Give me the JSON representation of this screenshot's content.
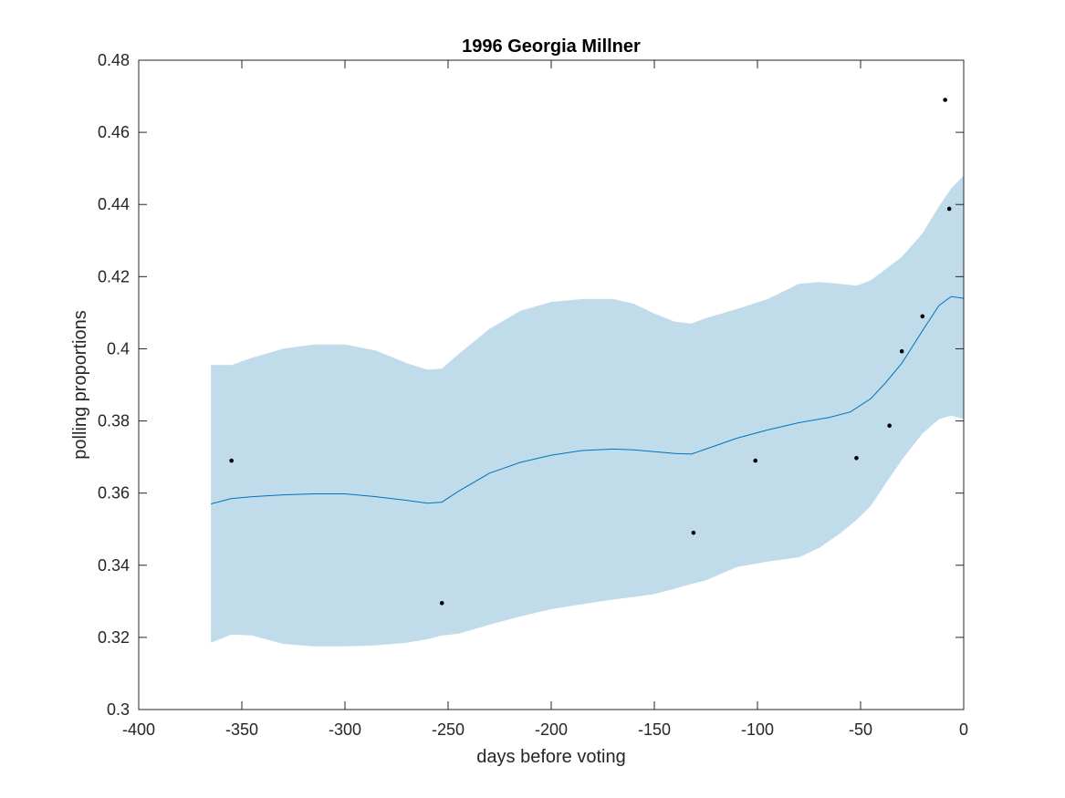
{
  "chart_data": {
    "type": "line",
    "title": "1996 Georgia Millner",
    "xlabel": "days before voting",
    "ylabel": "polling proportions",
    "xlim": [
      -400,
      0
    ],
    "ylim": [
      0.3,
      0.48
    ],
    "xticks": [
      -400,
      -350,
      -300,
      -250,
      -200,
      -150,
      -100,
      -50,
      0
    ],
    "yticks": [
      0.3,
      0.32,
      0.34,
      0.36,
      0.38,
      0.4,
      0.42,
      0.44,
      0.46,
      0.48
    ],
    "xtick_labels": [
      "-400",
      "-350",
      "-300",
      "-250",
      "-200",
      "-150",
      "-100",
      "-50",
      "0"
    ],
    "ytick_labels": [
      "0.3",
      "0.32",
      "0.34",
      "0.36",
      "0.38",
      "0.4",
      "0.42",
      "0.44",
      "0.46",
      "0.48"
    ],
    "grid": false,
    "colors": {
      "band": "#c0dceb",
      "line": "#0072bd",
      "points": "#000000",
      "axes": "#262626"
    },
    "series": [
      {
        "kind": "fit-line",
        "x": [
          -365,
          -355,
          -345,
          -330,
          -315,
          -300,
          -285,
          -270,
          -260,
          -253,
          -245,
          -230,
          -215,
          -200,
          -185,
          -170,
          -160,
          -150,
          -140,
          -132,
          -125,
          -110,
          -95,
          -80,
          -65,
          -55,
          -45,
          -38,
          -30,
          -20,
          -12,
          -6,
          0
        ],
        "y": [
          0.357,
          0.3585,
          0.359,
          0.3595,
          0.3598,
          0.3598,
          0.359,
          0.358,
          0.3572,
          0.3575,
          0.3605,
          0.3655,
          0.3685,
          0.3705,
          0.3718,
          0.3722,
          0.372,
          0.3715,
          0.371,
          0.3708,
          0.3722,
          0.3752,
          0.3775,
          0.3795,
          0.381,
          0.3825,
          0.3862,
          0.3905,
          0.396,
          0.405,
          0.412,
          0.4145,
          0.414
        ]
      },
      {
        "kind": "band-upper",
        "x": [
          -365,
          -355,
          -345,
          -330,
          -315,
          -300,
          -285,
          -270,
          -260,
          -253,
          -245,
          -230,
          -215,
          -200,
          -185,
          -170,
          -160,
          -150,
          -140,
          -132,
          -125,
          -110,
          -95,
          -80,
          -70,
          -60,
          -52,
          -45,
          -38,
          -30,
          -20,
          -12,
          -6,
          0
        ],
        "y": [
          0.3955,
          0.3955,
          0.3975,
          0.4,
          0.4012,
          0.4012,
          0.3995,
          0.396,
          0.3942,
          0.3945,
          0.3985,
          0.4055,
          0.4105,
          0.413,
          0.4138,
          0.4138,
          0.4125,
          0.4098,
          0.4075,
          0.407,
          0.4085,
          0.411,
          0.4138,
          0.418,
          0.4185,
          0.418,
          0.4175,
          0.419,
          0.422,
          0.4255,
          0.432,
          0.4395,
          0.4445,
          0.448
        ]
      },
      {
        "kind": "band-lower",
        "x": [
          -365,
          -355,
          -345,
          -330,
          -315,
          -300,
          -285,
          -270,
          -260,
          -253,
          -245,
          -230,
          -215,
          -200,
          -185,
          -170,
          -160,
          -150,
          -140,
          -132,
          -125,
          -110,
          -95,
          -80,
          -70,
          -60,
          -52,
          -45,
          -38,
          -30,
          -20,
          -12,
          -6,
          0
        ],
        "y": [
          0.3185,
          0.3208,
          0.3205,
          0.3182,
          0.3175,
          0.3175,
          0.3178,
          0.3185,
          0.3195,
          0.3205,
          0.321,
          0.3235,
          0.3258,
          0.3278,
          0.3292,
          0.3305,
          0.3312,
          0.332,
          0.3335,
          0.3348,
          0.3358,
          0.3395,
          0.341,
          0.3422,
          0.3448,
          0.3488,
          0.3525,
          0.3565,
          0.3625,
          0.3692,
          0.3765,
          0.3805,
          0.3815,
          0.3805
        ]
      },
      {
        "kind": "points",
        "x": [
          -355,
          -253,
          -131,
          -101,
          -52,
          -36,
          -30,
          -20,
          -9,
          -7
        ],
        "y": [
          0.369,
          0.3295,
          0.349,
          0.369,
          0.3697,
          0.3787,
          0.3993,
          0.409,
          0.469,
          0.4388
        ]
      }
    ]
  }
}
